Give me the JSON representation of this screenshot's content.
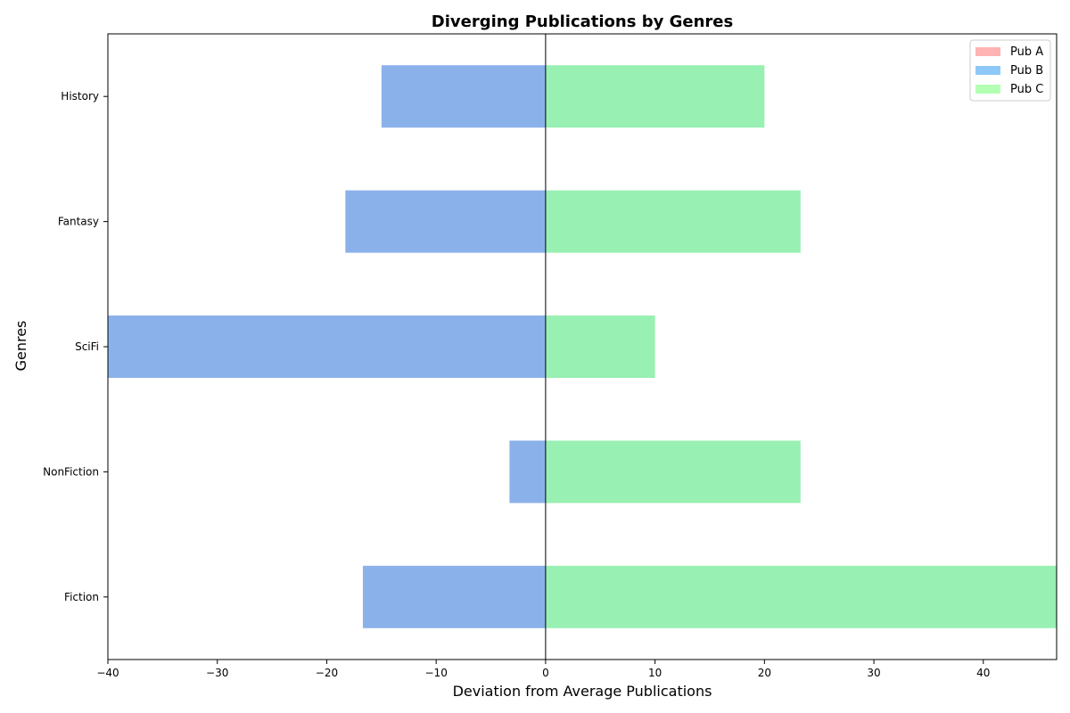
{
  "chart_data": {
    "type": "bar",
    "orientation": "horizontal",
    "title": "Diverging Publications by Genres",
    "xlabel": "Deviation from Average Publications",
    "ylabel": "Genres",
    "categories": [
      "Fiction",
      "NonFiction",
      "SciFi",
      "Fantasy",
      "History"
    ],
    "xlim": [
      -40,
      46.7
    ],
    "xticks": [
      -40,
      -30,
      -20,
      -10,
      0,
      10,
      20,
      30,
      40
    ],
    "xtick_labels": [
      "−40",
      "−30",
      "−20",
      "−10",
      "0",
      "10",
      "20",
      "30",
      "40"
    ],
    "grid": false,
    "legend_position": "top-right",
    "series": [
      {
        "name": "Pub A",
        "color": "#ffb3b3",
        "values": [
          0,
          0,
          0,
          0,
          0
        ],
        "legend_color": "#ffb3b3"
      },
      {
        "name": "Pub B",
        "color": "#8bb1ea",
        "values": [
          -16.7,
          -3.3,
          -40,
          -18.3,
          -15
        ],
        "legend_color": "#8ec8f8"
      },
      {
        "name": "Pub C",
        "color": "#98f0b2",
        "values": [
          46.7,
          23.3,
          10,
          23.3,
          20
        ],
        "legend_color": "#b3ffb3"
      }
    ]
  }
}
